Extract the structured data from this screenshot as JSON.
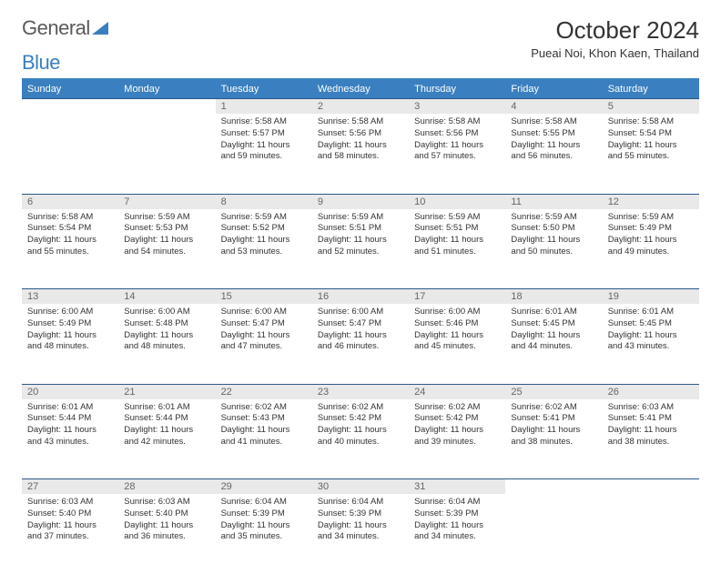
{
  "header": {
    "logo_text_1": "General",
    "logo_text_2": "Blue",
    "month_title": "October 2024",
    "location": "Pueai Noi, Khon Kaen, Thailand"
  },
  "colors": {
    "header_bg": "#3a7fbf",
    "header_text": "#ffffff",
    "daynum_bg": "#e9e9e9",
    "week_border": "#2a5a8a",
    "page_bg": "#ffffff",
    "body_text": "#333333",
    "logo_gray": "#5a5a5a",
    "logo_blue": "#3a7fbf"
  },
  "day_labels": [
    "Sunday",
    "Monday",
    "Tuesday",
    "Wednesday",
    "Thursday",
    "Friday",
    "Saturday"
  ],
  "weeks": [
    [
      {
        "n": "",
        "sunrise": "",
        "sunset": "",
        "daylight": ""
      },
      {
        "n": "",
        "sunrise": "",
        "sunset": "",
        "daylight": ""
      },
      {
        "n": "1",
        "sunrise": "Sunrise: 5:58 AM",
        "sunset": "Sunset: 5:57 PM",
        "daylight": "Daylight: 11 hours and 59 minutes."
      },
      {
        "n": "2",
        "sunrise": "Sunrise: 5:58 AM",
        "sunset": "Sunset: 5:56 PM",
        "daylight": "Daylight: 11 hours and 58 minutes."
      },
      {
        "n": "3",
        "sunrise": "Sunrise: 5:58 AM",
        "sunset": "Sunset: 5:56 PM",
        "daylight": "Daylight: 11 hours and 57 minutes."
      },
      {
        "n": "4",
        "sunrise": "Sunrise: 5:58 AM",
        "sunset": "Sunset: 5:55 PM",
        "daylight": "Daylight: 11 hours and 56 minutes."
      },
      {
        "n": "5",
        "sunrise": "Sunrise: 5:58 AM",
        "sunset": "Sunset: 5:54 PM",
        "daylight": "Daylight: 11 hours and 55 minutes."
      }
    ],
    [
      {
        "n": "6",
        "sunrise": "Sunrise: 5:58 AM",
        "sunset": "Sunset: 5:54 PM",
        "daylight": "Daylight: 11 hours and 55 minutes."
      },
      {
        "n": "7",
        "sunrise": "Sunrise: 5:59 AM",
        "sunset": "Sunset: 5:53 PM",
        "daylight": "Daylight: 11 hours and 54 minutes."
      },
      {
        "n": "8",
        "sunrise": "Sunrise: 5:59 AM",
        "sunset": "Sunset: 5:52 PM",
        "daylight": "Daylight: 11 hours and 53 minutes."
      },
      {
        "n": "9",
        "sunrise": "Sunrise: 5:59 AM",
        "sunset": "Sunset: 5:51 PM",
        "daylight": "Daylight: 11 hours and 52 minutes."
      },
      {
        "n": "10",
        "sunrise": "Sunrise: 5:59 AM",
        "sunset": "Sunset: 5:51 PM",
        "daylight": "Daylight: 11 hours and 51 minutes."
      },
      {
        "n": "11",
        "sunrise": "Sunrise: 5:59 AM",
        "sunset": "Sunset: 5:50 PM",
        "daylight": "Daylight: 11 hours and 50 minutes."
      },
      {
        "n": "12",
        "sunrise": "Sunrise: 5:59 AM",
        "sunset": "Sunset: 5:49 PM",
        "daylight": "Daylight: 11 hours and 49 minutes."
      }
    ],
    [
      {
        "n": "13",
        "sunrise": "Sunrise: 6:00 AM",
        "sunset": "Sunset: 5:49 PM",
        "daylight": "Daylight: 11 hours and 48 minutes."
      },
      {
        "n": "14",
        "sunrise": "Sunrise: 6:00 AM",
        "sunset": "Sunset: 5:48 PM",
        "daylight": "Daylight: 11 hours and 48 minutes."
      },
      {
        "n": "15",
        "sunrise": "Sunrise: 6:00 AM",
        "sunset": "Sunset: 5:47 PM",
        "daylight": "Daylight: 11 hours and 47 minutes."
      },
      {
        "n": "16",
        "sunrise": "Sunrise: 6:00 AM",
        "sunset": "Sunset: 5:47 PM",
        "daylight": "Daylight: 11 hours and 46 minutes."
      },
      {
        "n": "17",
        "sunrise": "Sunrise: 6:00 AM",
        "sunset": "Sunset: 5:46 PM",
        "daylight": "Daylight: 11 hours and 45 minutes."
      },
      {
        "n": "18",
        "sunrise": "Sunrise: 6:01 AM",
        "sunset": "Sunset: 5:45 PM",
        "daylight": "Daylight: 11 hours and 44 minutes."
      },
      {
        "n": "19",
        "sunrise": "Sunrise: 6:01 AM",
        "sunset": "Sunset: 5:45 PM",
        "daylight": "Daylight: 11 hours and 43 minutes."
      }
    ],
    [
      {
        "n": "20",
        "sunrise": "Sunrise: 6:01 AM",
        "sunset": "Sunset: 5:44 PM",
        "daylight": "Daylight: 11 hours and 43 minutes."
      },
      {
        "n": "21",
        "sunrise": "Sunrise: 6:01 AM",
        "sunset": "Sunset: 5:44 PM",
        "daylight": "Daylight: 11 hours and 42 minutes."
      },
      {
        "n": "22",
        "sunrise": "Sunrise: 6:02 AM",
        "sunset": "Sunset: 5:43 PM",
        "daylight": "Daylight: 11 hours and 41 minutes."
      },
      {
        "n": "23",
        "sunrise": "Sunrise: 6:02 AM",
        "sunset": "Sunset: 5:42 PM",
        "daylight": "Daylight: 11 hours and 40 minutes."
      },
      {
        "n": "24",
        "sunrise": "Sunrise: 6:02 AM",
        "sunset": "Sunset: 5:42 PM",
        "daylight": "Daylight: 11 hours and 39 minutes."
      },
      {
        "n": "25",
        "sunrise": "Sunrise: 6:02 AM",
        "sunset": "Sunset: 5:41 PM",
        "daylight": "Daylight: 11 hours and 38 minutes."
      },
      {
        "n": "26",
        "sunrise": "Sunrise: 6:03 AM",
        "sunset": "Sunset: 5:41 PM",
        "daylight": "Daylight: 11 hours and 38 minutes."
      }
    ],
    [
      {
        "n": "27",
        "sunrise": "Sunrise: 6:03 AM",
        "sunset": "Sunset: 5:40 PM",
        "daylight": "Daylight: 11 hours and 37 minutes."
      },
      {
        "n": "28",
        "sunrise": "Sunrise: 6:03 AM",
        "sunset": "Sunset: 5:40 PM",
        "daylight": "Daylight: 11 hours and 36 minutes."
      },
      {
        "n": "29",
        "sunrise": "Sunrise: 6:04 AM",
        "sunset": "Sunset: 5:39 PM",
        "daylight": "Daylight: 11 hours and 35 minutes."
      },
      {
        "n": "30",
        "sunrise": "Sunrise: 6:04 AM",
        "sunset": "Sunset: 5:39 PM",
        "daylight": "Daylight: 11 hours and 34 minutes."
      },
      {
        "n": "31",
        "sunrise": "Sunrise: 6:04 AM",
        "sunset": "Sunset: 5:39 PM",
        "daylight": "Daylight: 11 hours and 34 minutes."
      },
      {
        "n": "",
        "sunrise": "",
        "sunset": "",
        "daylight": ""
      },
      {
        "n": "",
        "sunrise": "",
        "sunset": "",
        "daylight": ""
      }
    ]
  ]
}
